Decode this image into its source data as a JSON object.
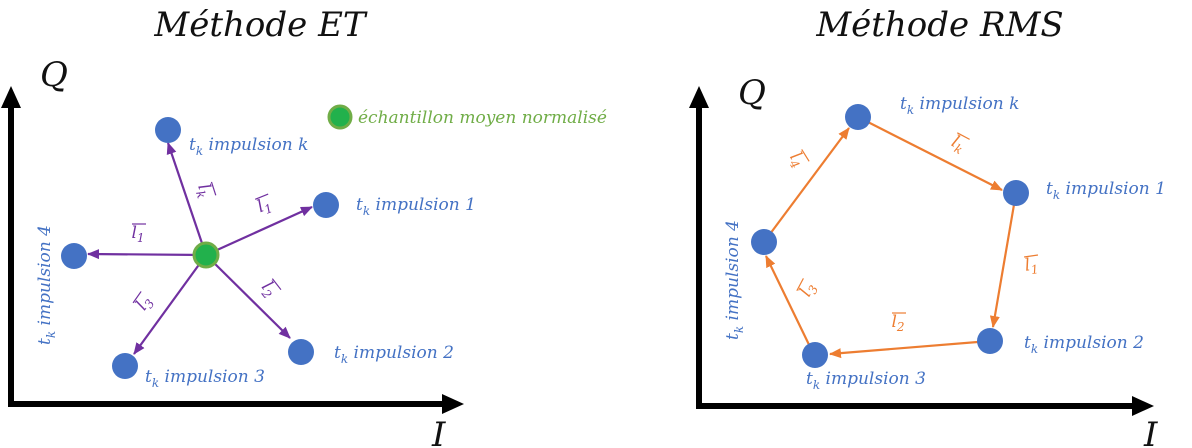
{
  "colors": {
    "point": "#4472c4",
    "center_fill": "#22b14c",
    "center_stroke": "#70ad47",
    "et_vector": "#7030a0",
    "rms_vector": "#ed7d31",
    "axis": "#000000",
    "label_text": "#4472c4",
    "legend_text": "#70ad47"
  },
  "diagrams": {
    "et": {
      "title": "Méthode ET",
      "axis_q": "Q",
      "axis_i": "I",
      "legend": "échantillon moyen normalisé",
      "points": {
        "k": "t_k impulsion k",
        "p1": "t_k impulsion 1",
        "p2": "t_k impulsion 2",
        "p3": "t_k impulsion 3",
        "p4": "t_k impulsion 4"
      },
      "vectors": {
        "k": "l_k",
        "v1a": "l_1",
        "v1b": "l_1",
        "v2": "l_2",
        "v3": "l_3"
      }
    },
    "rms": {
      "title": "Méthode RMS",
      "axis_q": "Q",
      "axis_i": "I",
      "points": {
        "k": "t_k impulsion k",
        "p1": "t_k impulsion 1",
        "p2": "t_k impulsion 2",
        "p3": "t_k impulsion 3",
        "p4": "t_k impulsion 4"
      },
      "vectors": {
        "vk": "l_k",
        "v1": "l_1",
        "v2": "l_2",
        "v3": "l_3",
        "v4": "l_4"
      }
    }
  }
}
